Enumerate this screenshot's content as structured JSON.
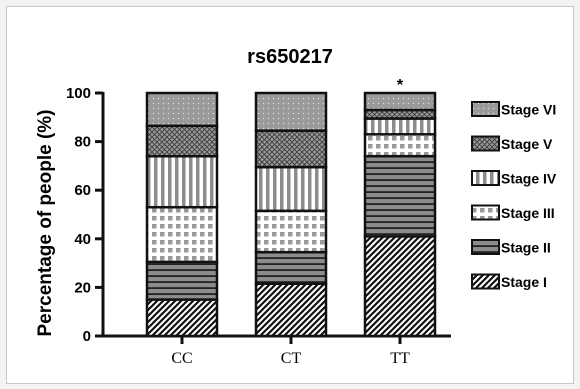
{
  "chart_data": {
    "type": "bar",
    "stacked": true,
    "title": "rs650217",
    "xlabel": "",
    "ylabel": "Percentage of people (%)",
    "ylim": [
      0,
      100
    ],
    "yticks": [
      "0",
      "20",
      "40",
      "60",
      "80",
      "100"
    ],
    "categories": [
      "CC",
      "CT",
      "TT"
    ],
    "series": [
      {
        "name": "Stage I",
        "values": [
          15,
          21.5,
          41
        ],
        "pattern": "diagonal"
      },
      {
        "name": "Stage II",
        "values": [
          15.5,
          13,
          33
        ],
        "pattern": "horizontal"
      },
      {
        "name": "Stage III",
        "values": [
          22.5,
          17,
          9
        ],
        "pattern": "checker"
      },
      {
        "name": "Stage IV",
        "values": [
          21,
          18,
          6.5
        ],
        "pattern": "vertical"
      },
      {
        "name": "Stage V",
        "values": [
          12.5,
          15,
          3.5
        ],
        "pattern": "crosshatch"
      },
      {
        "name": "Stage VI",
        "values": [
          13.5,
          15.5,
          7
        ],
        "pattern": "dots"
      }
    ],
    "annotations": [
      {
        "category": "TT",
        "text": "*"
      }
    ],
    "legend_position": "right",
    "grid": false,
    "colors": {
      "fill_dark": "#111111",
      "fill_gray": "#8c8c8c",
      "background": "#ffffff"
    }
  }
}
